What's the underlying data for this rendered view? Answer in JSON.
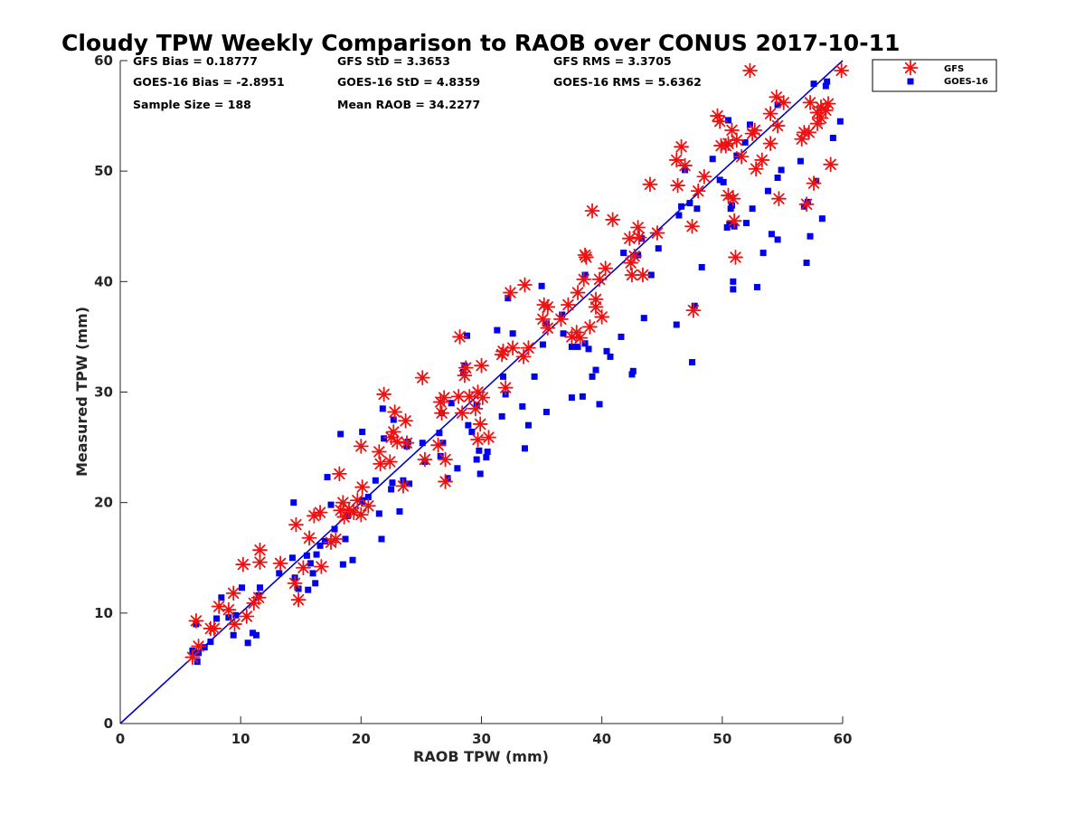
{
  "chart_data": {
    "type": "scatter",
    "title": "Cloudy TPW Weekly Comparison to RAOB over CONUS 2017-10-11",
    "xlabel": "RAOB TPW (mm)",
    "ylabel": "Measured TPW (mm)",
    "xlim": [
      0,
      60
    ],
    "ylim": [
      0,
      60
    ],
    "xticks": [
      0,
      10,
      20,
      30,
      40,
      50,
      60
    ],
    "yticks": [
      0,
      10,
      20,
      30,
      40,
      50,
      60
    ],
    "grid": false,
    "legend_position": "outside top-right",
    "stats": [
      [
        "GFS Bias = 0.18777",
        "GFS StD = 3.3653",
        "GFS RMS = 3.3705"
      ],
      [
        "GOES-16 Bias = -2.8951",
        "GOES-16 StD = 4.8359",
        "GOES-16 RMS = 5.6362"
      ],
      [
        "Sample Size = 188",
        "Mean RAOB = 34.2277"
      ]
    ],
    "reference_line": {
      "x": [
        0,
        60
      ],
      "y": [
        0,
        60
      ],
      "color": "#0000cc"
    },
    "series": [
      {
        "name": "GFS",
        "marker": "asterisk",
        "color": "#ee1111",
        "points": [
          [
            6.0,
            6.0
          ],
          [
            6.3,
            9.3
          ],
          [
            6.5,
            7.0
          ],
          [
            7.5,
            8.6
          ],
          [
            7.8,
            8.6
          ],
          [
            8.2,
            10.6
          ],
          [
            9.0,
            10.3
          ],
          [
            9.4,
            11.8
          ],
          [
            9.5,
            9.0
          ],
          [
            10.5,
            9.7
          ],
          [
            10.2,
            14.4
          ],
          [
            11.1,
            10.9
          ],
          [
            11.5,
            11.4
          ],
          [
            11.6,
            15.7
          ],
          [
            11.6,
            14.6
          ],
          [
            13.3,
            14.5
          ],
          [
            14.5,
            12.7
          ],
          [
            14.6,
            18.0
          ],
          [
            14.8,
            11.2
          ],
          [
            15.2,
            14.1
          ],
          [
            15.7,
            16.8
          ],
          [
            16.1,
            18.8
          ],
          [
            16.6,
            19.1
          ],
          [
            16.7,
            14.2
          ],
          [
            17.5,
            16.4
          ],
          [
            17.9,
            16.7
          ],
          [
            18.2,
            22.6
          ],
          [
            18.3,
            19.3
          ],
          [
            18.5,
            20.0
          ],
          [
            18.6,
            18.7
          ],
          [
            19.0,
            19.4
          ],
          [
            19.4,
            19.1
          ],
          [
            19.7,
            20.2
          ],
          [
            20.0,
            18.9
          ],
          [
            20.1,
            21.4
          ],
          [
            20.0,
            25.1
          ],
          [
            20.6,
            19.7
          ],
          [
            21.5,
            24.6
          ],
          [
            21.6,
            23.5
          ],
          [
            21.9,
            29.8
          ],
          [
            22.4,
            23.7
          ],
          [
            22.5,
            25.9
          ],
          [
            22.7,
            26.4
          ],
          [
            22.8,
            28.2
          ],
          [
            23.0,
            25.5
          ],
          [
            23.5,
            21.5
          ],
          [
            23.7,
            27.4
          ],
          [
            23.8,
            25.4
          ],
          [
            25.1,
            31.3
          ],
          [
            25.3,
            23.9
          ],
          [
            26.4,
            25.2
          ],
          [
            26.6,
            29.1
          ],
          [
            26.7,
            28.1
          ],
          [
            26.9,
            29.5
          ],
          [
            27.0,
            21.9
          ],
          [
            27.0,
            23.9
          ],
          [
            28.1,
            29.6
          ],
          [
            28.2,
            35.0
          ],
          [
            28.4,
            28.1
          ],
          [
            28.6,
            31.5
          ],
          [
            28.7,
            32.2
          ],
          [
            29.0,
            29.6
          ],
          [
            29.5,
            28.5
          ],
          [
            29.7,
            30.0
          ],
          [
            29.7,
            25.7
          ],
          [
            29.9,
            27.1
          ],
          [
            30.0,
            32.4
          ],
          [
            30.1,
            29.5
          ],
          [
            30.6,
            25.9
          ],
          [
            31.7,
            33.4
          ],
          [
            31.8,
            33.7
          ],
          [
            32.0,
            30.4
          ],
          [
            32.4,
            39.0
          ],
          [
            32.6,
            34.0
          ],
          [
            33.5,
            33.2
          ],
          [
            33.6,
            39.7
          ],
          [
            33.9,
            34.0
          ],
          [
            35.1,
            36.6
          ],
          [
            35.2,
            37.9
          ],
          [
            35.5,
            37.7
          ],
          [
            35.5,
            35.8
          ],
          [
            36.6,
            36.6
          ],
          [
            37.2,
            37.9
          ],
          [
            37.5,
            35.0
          ],
          [
            37.9,
            35.4
          ],
          [
            38.0,
            39.0
          ],
          [
            38.2,
            34.9
          ],
          [
            38.5,
            40.2
          ],
          [
            38.6,
            42.4
          ],
          [
            38.7,
            42.2
          ],
          [
            39.0,
            35.9
          ],
          [
            39.2,
            46.4
          ],
          [
            39.5,
            37.7
          ],
          [
            39.5,
            38.4
          ],
          [
            39.8,
            40.2
          ],
          [
            40.0,
            36.8
          ],
          [
            40.3,
            41.2
          ],
          [
            40.9,
            45.6
          ],
          [
            42.3,
            43.9
          ],
          [
            42.4,
            41.7
          ],
          [
            42.5,
            40.6
          ],
          [
            42.7,
            42.3
          ],
          [
            43.0,
            44.9
          ],
          [
            43.1,
            44.0
          ],
          [
            43.4,
            40.6
          ],
          [
            44.0,
            48.8
          ],
          [
            44.6,
            44.4
          ],
          [
            46.2,
            51.0
          ],
          [
            46.3,
            48.7
          ],
          [
            46.6,
            52.2
          ],
          [
            46.9,
            50.5
          ],
          [
            47.5,
            45.0
          ],
          [
            47.6,
            37.4
          ],
          [
            48.0,
            48.2
          ],
          [
            48.5,
            49.5
          ],
          [
            49.6,
            55.0
          ],
          [
            49.8,
            54.5
          ],
          [
            49.9,
            52.3
          ],
          [
            50.3,
            52.3
          ],
          [
            50.5,
            47.8
          ],
          [
            50.5,
            52.5
          ],
          [
            50.8,
            53.7
          ],
          [
            50.9,
            47.5
          ],
          [
            51.0,
            45.5
          ],
          [
            51.1,
            42.2
          ],
          [
            51.2,
            52.8
          ],
          [
            51.6,
            51.3
          ],
          [
            52.3,
            59.1
          ],
          [
            52.5,
            53.4
          ],
          [
            52.7,
            53.7
          ],
          [
            52.8,
            50.2
          ],
          [
            53.3,
            51.0
          ],
          [
            54.0,
            52.5
          ],
          [
            54.0,
            55.2
          ],
          [
            54.5,
            56.7
          ],
          [
            54.6,
            54.1
          ],
          [
            54.7,
            47.5
          ],
          [
            55.1,
            56.2
          ],
          [
            56.6,
            52.9
          ],
          [
            56.8,
            53.5
          ],
          [
            57.0,
            47.0
          ],
          [
            57.2,
            53.5
          ],
          [
            57.3,
            56.2
          ],
          [
            57.6,
            48.9
          ],
          [
            57.9,
            55.3
          ],
          [
            57.9,
            54.3
          ],
          [
            58.2,
            55.8
          ],
          [
            58.2,
            54.8
          ],
          [
            58.6,
            55.5
          ],
          [
            58.8,
            56.1
          ],
          [
            59.0,
            50.6
          ],
          [
            59.9,
            59.1
          ]
        ]
      },
      {
        "name": "GOES-16",
        "marker": "square",
        "color": "#0000ee",
        "points": [
          [
            6.0,
            6.6
          ],
          [
            6.1,
            6.5
          ],
          [
            6.3,
            9.0
          ],
          [
            6.4,
            5.6
          ],
          [
            6.5,
            6.4
          ],
          [
            7.0,
            6.9
          ],
          [
            7.5,
            7.4
          ],
          [
            8.0,
            9.5
          ],
          [
            8.4,
            11.4
          ],
          [
            9.0,
            9.6
          ],
          [
            9.4,
            8.0
          ],
          [
            9.6,
            9.8
          ],
          [
            10.1,
            12.3
          ],
          [
            10.6,
            7.3
          ],
          [
            11.0,
            8.2
          ],
          [
            11.3,
            8.0
          ],
          [
            11.5,
            11.6
          ],
          [
            11.6,
            12.3
          ],
          [
            13.2,
            13.6
          ],
          [
            14.3,
            15.0
          ],
          [
            14.4,
            20.0
          ],
          [
            14.5,
            13.2
          ],
          [
            14.8,
            12.2
          ],
          [
            15.5,
            15.2
          ],
          [
            15.6,
            12.1
          ],
          [
            15.8,
            14.5
          ],
          [
            16.0,
            13.6
          ],
          [
            16.2,
            12.7
          ],
          [
            16.3,
            15.3
          ],
          [
            16.6,
            16.1
          ],
          [
            17.0,
            16.5
          ],
          [
            17.2,
            22.3
          ],
          [
            17.5,
            19.8
          ],
          [
            17.8,
            17.6
          ],
          [
            18.3,
            26.2
          ],
          [
            18.5,
            14.4
          ],
          [
            18.7,
            16.7
          ],
          [
            18.9,
            18.8
          ],
          [
            19.3,
            14.8
          ],
          [
            20.1,
            20.2
          ],
          [
            20.1,
            20.1
          ],
          [
            20.1,
            26.4
          ],
          [
            20.6,
            20.5
          ],
          [
            21.2,
            22.0
          ],
          [
            21.5,
            19.0
          ],
          [
            21.7,
            16.7
          ],
          [
            21.8,
            28.5
          ],
          [
            21.9,
            25.8
          ],
          [
            22.5,
            21.2
          ],
          [
            22.6,
            21.8
          ],
          [
            22.7,
            27.5
          ],
          [
            23.2,
            19.2
          ],
          [
            23.5,
            22.0
          ],
          [
            23.8,
            25.1
          ],
          [
            23.9,
            25.5
          ],
          [
            24.0,
            21.7
          ],
          [
            25.1,
            25.4
          ],
          [
            25.3,
            23.7
          ],
          [
            26.5,
            26.3
          ],
          [
            26.6,
            24.2
          ],
          [
            26.7,
            28.1
          ],
          [
            26.8,
            25.4
          ],
          [
            27.2,
            22.2
          ],
          [
            27.5,
            29.0
          ],
          [
            28.0,
            23.1
          ],
          [
            28.5,
            31.8
          ],
          [
            28.6,
            32.4
          ],
          [
            28.8,
            35.1
          ],
          [
            28.9,
            27.0
          ],
          [
            29.2,
            26.4
          ],
          [
            29.6,
            28.8
          ],
          [
            29.6,
            23.9
          ],
          [
            29.8,
            24.7
          ],
          [
            29.9,
            22.6
          ],
          [
            30.4,
            24.1
          ],
          [
            30.5,
            24.6
          ],
          [
            31.3,
            35.6
          ],
          [
            31.7,
            27.8
          ],
          [
            31.8,
            31.4
          ],
          [
            32.0,
            29.8
          ],
          [
            32.2,
            38.5
          ],
          [
            32.6,
            35.3
          ],
          [
            33.4,
            28.7
          ],
          [
            33.6,
            24.9
          ],
          [
            33.9,
            27.0
          ],
          [
            34.4,
            31.4
          ],
          [
            35.0,
            39.6
          ],
          [
            35.1,
            34.3
          ],
          [
            35.4,
            36.2
          ],
          [
            35.4,
            28.2
          ],
          [
            36.7,
            37.0
          ],
          [
            36.8,
            35.3
          ],
          [
            37.5,
            29.5
          ],
          [
            37.5,
            34.1
          ],
          [
            38.0,
            34.1
          ],
          [
            38.4,
            29.6
          ],
          [
            38.6,
            34.4
          ],
          [
            38.6,
            40.6
          ],
          [
            38.9,
            33.9
          ],
          [
            39.2,
            31.4
          ],
          [
            39.5,
            32.0
          ],
          [
            39.8,
            28.9
          ],
          [
            40.4,
            33.7
          ],
          [
            40.7,
            33.2
          ],
          [
            41.6,
            35.0
          ],
          [
            41.8,
            42.6
          ],
          [
            42.5,
            31.6
          ],
          [
            42.6,
            31.9
          ],
          [
            43.0,
            42.4
          ],
          [
            43.3,
            43.9
          ],
          [
            43.5,
            36.7
          ],
          [
            44.1,
            40.6
          ],
          [
            44.7,
            43.0
          ],
          [
            46.2,
            36.1
          ],
          [
            46.4,
            46.0
          ],
          [
            46.6,
            46.8
          ],
          [
            46.9,
            50.1
          ],
          [
            47.3,
            47.1
          ],
          [
            47.5,
            32.7
          ],
          [
            47.7,
            37.8
          ],
          [
            47.9,
            46.6
          ],
          [
            48.3,
            41.3
          ],
          [
            49.2,
            51.1
          ],
          [
            49.8,
            49.2
          ],
          [
            50.1,
            49.0
          ],
          [
            50.4,
            44.9
          ],
          [
            50.5,
            54.6
          ],
          [
            50.6,
            45.2
          ],
          [
            50.7,
            46.6
          ],
          [
            50.8,
            46.9
          ],
          [
            50.9,
            40.0
          ],
          [
            50.9,
            39.3
          ],
          [
            51.0,
            45.0
          ],
          [
            51.2,
            51.4
          ],
          [
            51.9,
            52.6
          ],
          [
            52.0,
            45.3
          ],
          [
            52.3,
            54.2
          ],
          [
            52.5,
            46.6
          ],
          [
            52.9,
            39.5
          ],
          [
            53.4,
            42.6
          ],
          [
            53.8,
            48.2
          ],
          [
            54.1,
            44.3
          ],
          [
            54.6,
            43.8
          ],
          [
            54.6,
            49.4
          ],
          [
            54.6,
            56.0
          ],
          [
            54.9,
            50.1
          ],
          [
            56.5,
            50.9
          ],
          [
            56.8,
            46.8
          ],
          [
            57.0,
            41.7
          ],
          [
            57.1,
            47.2
          ],
          [
            57.3,
            44.1
          ],
          [
            57.6,
            57.9
          ],
          [
            57.8,
            49.1
          ],
          [
            58.3,
            45.7
          ],
          [
            58.6,
            57.7
          ],
          [
            58.7,
            58.1
          ],
          [
            59.2,
            53.0
          ],
          [
            59.8,
            54.5
          ]
        ]
      }
    ]
  }
}
